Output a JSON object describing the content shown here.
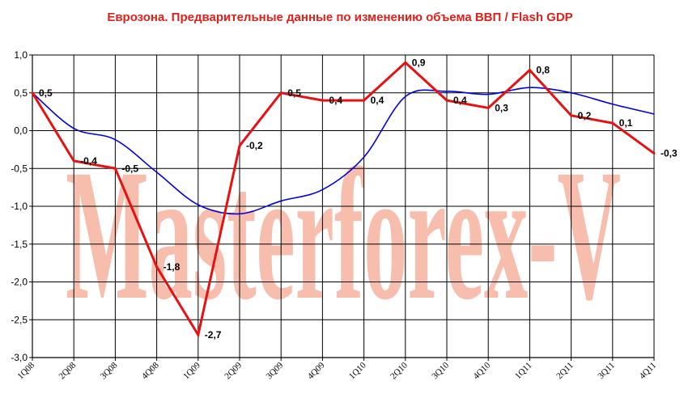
{
  "chart_data": {
    "type": "line",
    "title": "Еврозона. Предварительные данные по изменению объема ВВП / Flash GDP",
    "title_color": "#e0201b",
    "watermark": "Masterforex-V",
    "watermark_color": "#f6b7a5",
    "categories": [
      "1Q08",
      "2Q08",
      "3Q08",
      "4Q08",
      "1Q09",
      "2Q09",
      "3Q09",
      "4Q09",
      "1Q10",
      "2Q10",
      "3Q10",
      "4Q10",
      "1Q11",
      "2Q11",
      "3Q11",
      "4Q11"
    ],
    "ylim": [
      -3.0,
      1.0
    ],
    "y_ticks": [
      "1,0",
      "0,5",
      "0,0",
      "-0,5",
      "-1,0",
      "-1,5",
      "-2,0",
      "-2,5",
      "-3,0"
    ],
    "y_tick_values": [
      1.0,
      0.5,
      0.0,
      -0.5,
      -1.0,
      -1.5,
      -2.0,
      -2.5,
      -3.0
    ],
    "grid": true,
    "series": [
      {
        "color": "#e81010",
        "values": [
          0.5,
          -0.4,
          -0.5,
          -1.8,
          -2.7,
          -0.2,
          0.5,
          0.4,
          0.4,
          0.9,
          0.4,
          0.3,
          0.8,
          0.2,
          0.1,
          -0.3
        ],
        "labels": [
          "0,5",
          "-0,4",
          "-0,5",
          "-1,8",
          "-2,7",
          "-0,2",
          "0,5",
          "0,4",
          "0,4",
          "0,9",
          "0,4",
          "0,3",
          "0,8",
          "0,2",
          "0,1",
          "-0,3"
        ]
      },
      {
        "color": "#0000e0",
        "smooth": true,
        "values": [
          0.5,
          0.03,
          -0.12,
          -0.55,
          -0.98,
          -1.1,
          -0.93,
          -0.78,
          -0.35,
          0.45,
          0.52,
          0.48,
          0.57,
          0.5,
          0.35,
          0.22
        ]
      }
    ]
  }
}
